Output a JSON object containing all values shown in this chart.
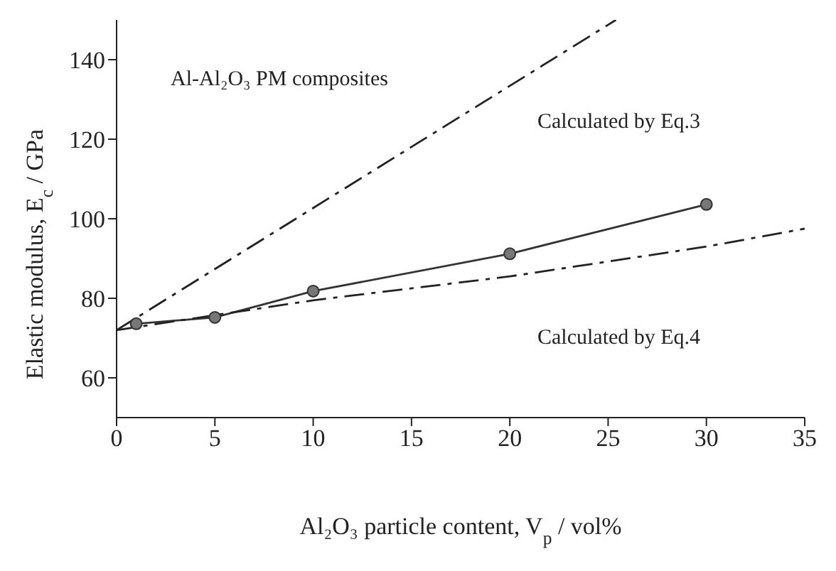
{
  "chart_data": {
    "type": "line",
    "xlabel": "Al₂O₃ particle content, V$_{p}$ / vol%",
    "ylabel": "Elastic modulus, E$_{c}$ / GPa",
    "annotations": [
      "Al-Al₂O₃ PM composites"
    ],
    "xlim": [
      0,
      35
    ],
    "xticks": [
      0,
      5,
      10,
      15,
      20,
      25,
      30,
      35
    ],
    "ylim": [
      50,
      150
    ],
    "yticks": [
      60,
      80,
      100,
      120,
      140
    ],
    "grid": false,
    "legend": false,
    "series": [
      {
        "color": "#333333",
        "marker": "circle",
        "line_style": "solid",
        "x": [
          1,
          5,
          10,
          20,
          30
        ],
        "values": [
          73.6,
          75.2,
          81.8,
          91.2,
          103.6
        ]
      },
      {
        "name": "Calculated by Eq.3",
        "color": "#222222",
        "marker": "none",
        "line_style": "dashed",
        "x": [
          0,
          25.4
        ],
        "values": [
          72,
          150
        ]
      },
      {
        "name": "Calculated by Eq.4",
        "color": "#222222",
        "marker": "none",
        "line_style": "dashed",
        "x": [
          0,
          10,
          20,
          30,
          35
        ],
        "values": [
          72,
          79.5,
          85.5,
          93,
          97.5
        ]
      }
    ]
  }
}
